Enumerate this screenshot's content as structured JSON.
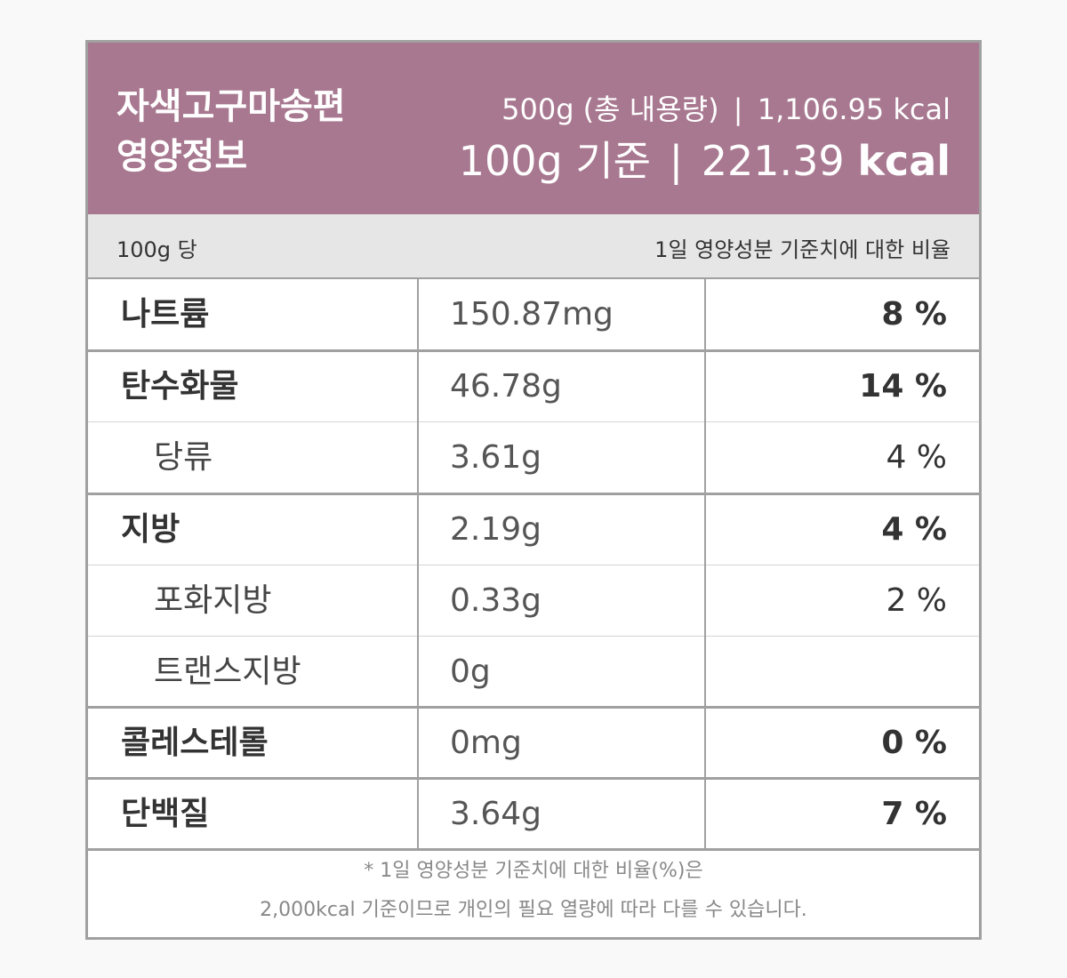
{
  "header": {
    "title": "자색고구마송편\n영양정보",
    "total_amount": "500g (총 내용량)",
    "total_separator": "|",
    "total_kcal": "1,106.95 kcal",
    "per_amount": "100g 기준",
    "per_separator": "|",
    "per_kcal_value": "221.39",
    "per_kcal_unit": "kcal"
  },
  "colors": {
    "header_bg": "#a87890",
    "subhead_bg": "#e6e6e6",
    "border": "#a0a0a0"
  },
  "subheader": {
    "left": "100g 당",
    "right": "1일 영양성분 기준치에 대한 비율"
  },
  "rows": [
    {
      "name": "나트륨",
      "value": "150.87mg",
      "percent": "8 %"
    },
    {
      "name": "탄수화물",
      "value": "46.78g",
      "percent": "14 %"
    },
    {
      "name": "당류",
      "value": "3.61g",
      "percent": "4 %"
    },
    {
      "name": "지방",
      "value": "2.19g",
      "percent": "4 %"
    },
    {
      "name": "포화지방",
      "value": "0.33g",
      "percent": "2 %"
    },
    {
      "name": "트랜스지방",
      "value": "0g",
      "percent": ""
    },
    {
      "name": "콜레스테롤",
      "value": "0mg",
      "percent": "0 %"
    },
    {
      "name": "단백질",
      "value": "3.64g",
      "percent": "7 %"
    }
  ],
  "footnote": {
    "line1": "* 1일 영양성분 기준치에 대한 비율(%)은",
    "line2": "2,000kcal 기준이므로 개인의 필요 열량에 따라 다를 수 있습니다."
  }
}
